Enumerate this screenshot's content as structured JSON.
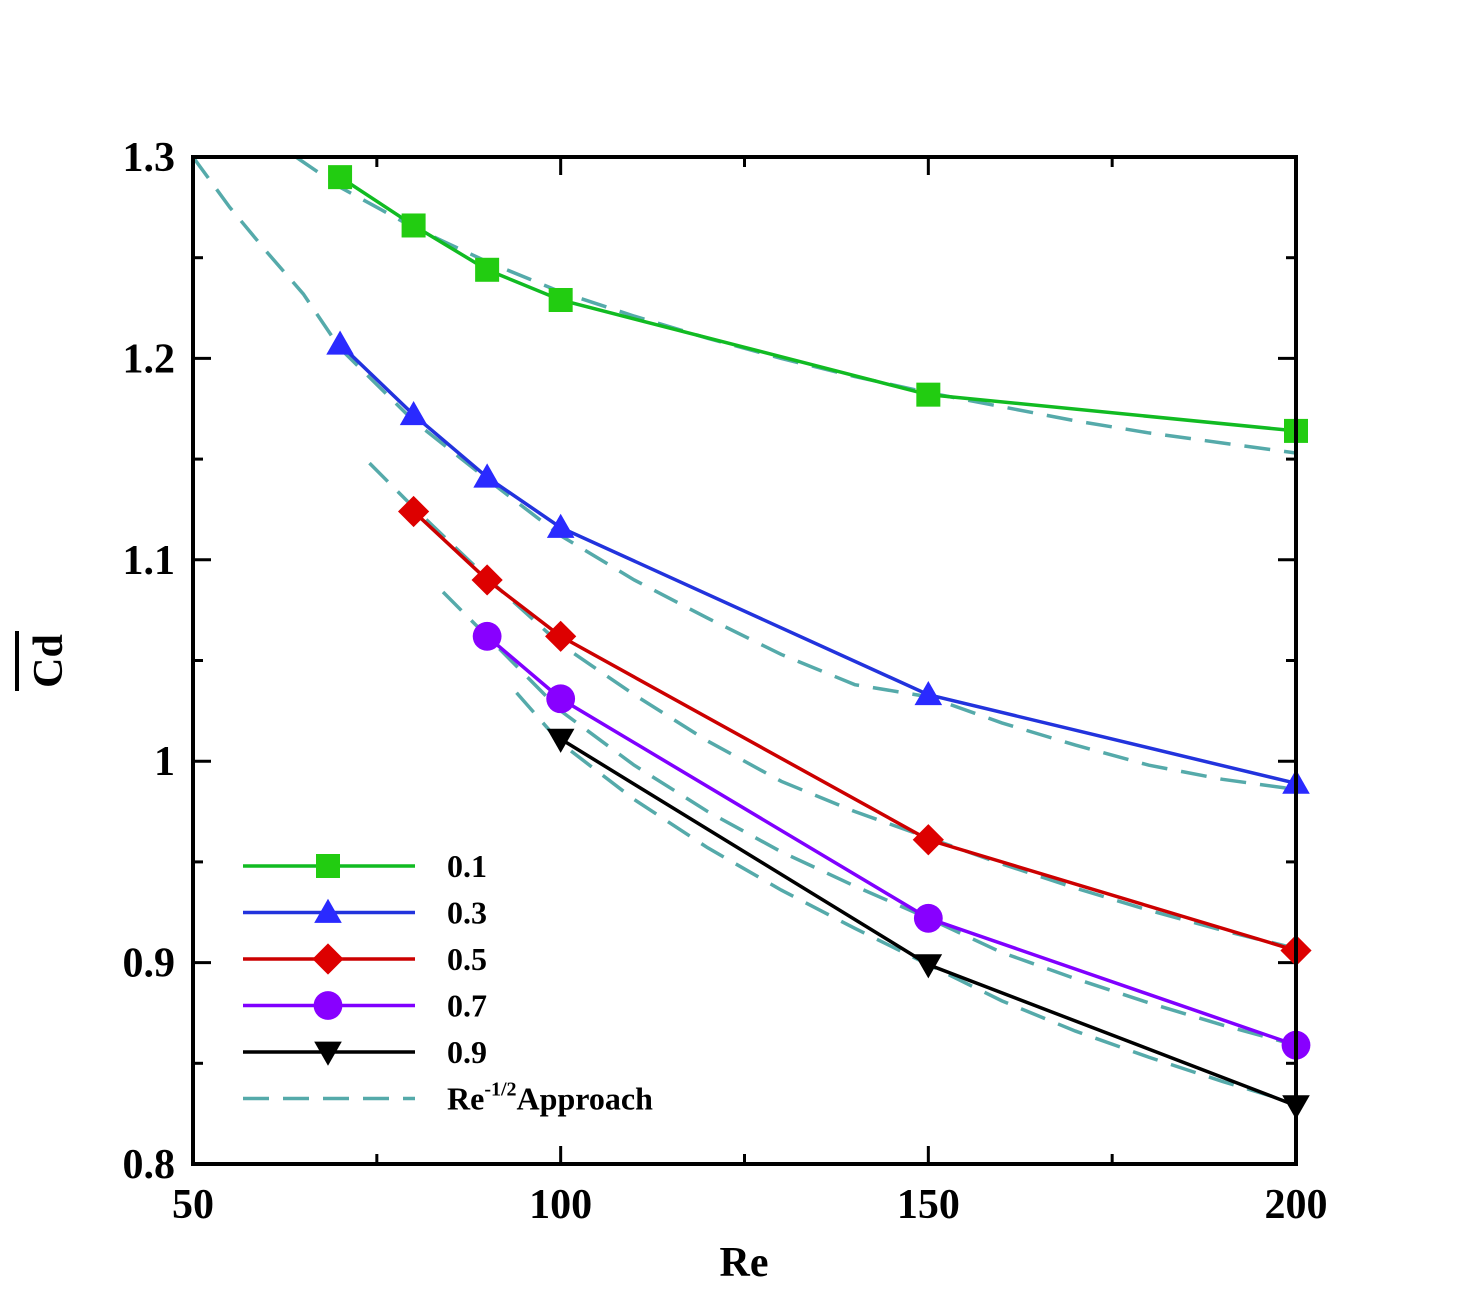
{
  "chart_data": {
    "type": "line",
    "title": "",
    "xlabel": "Re",
    "ylabel": "Cd",
    "ylabel_overline": true,
    "xlim": [
      50,
      200
    ],
    "ylim": [
      0.8,
      1.3
    ],
    "xticks": [
      50,
      100,
      150,
      200
    ],
    "xtick_labels": [
      "50",
      "100",
      "150",
      "200"
    ],
    "yticks": [
      0.8,
      0.9,
      1.0,
      1.1,
      1.2,
      1.3
    ],
    "ytick_labels": [
      "0.8",
      "0.9",
      "1",
      "1.1",
      "1.2",
      "1.3"
    ],
    "legend_position": "bottom-left",
    "series": [
      {
        "name": "0.1",
        "color": "#11bb22",
        "marker": "square",
        "marker_color": "#22cc11",
        "x": [
          70,
          80,
          90,
          100,
          150,
          200
        ],
        "y": [
          1.29,
          1.266,
          1.244,
          1.229,
          1.182,
          1.164
        ]
      },
      {
        "name": "0.3",
        "color": "#2233dd",
        "marker": "triangle-up",
        "marker_color": "#2a2aff",
        "x": [
          70,
          80,
          90,
          100,
          150,
          200
        ],
        "y": [
          1.207,
          1.172,
          1.141,
          1.116,
          1.033,
          0.989
        ]
      },
      {
        "name": "0.5",
        "color": "#cc0000",
        "marker": "diamond",
        "marker_color": "#dd0000",
        "x": [
          80,
          90,
          100,
          150,
          200
        ],
        "y": [
          1.124,
          1.09,
          1.062,
          0.961,
          0.906
        ]
      },
      {
        "name": "0.7",
        "color": "#8000ff",
        "marker": "circle",
        "marker_color": "#8800ff",
        "x": [
          90,
          100,
          150,
          200
        ],
        "y": [
          1.062,
          1.031,
          0.922,
          0.859
        ]
      },
      {
        "name": "0.9",
        "color": "#000000",
        "marker": "triangle-down",
        "marker_color": "#000000",
        "x": [
          100,
          150,
          200
        ],
        "y": [
          1.011,
          0.899,
          0.829
        ]
      }
    ],
    "fit_label_main": "Re",
    "fit_label_exp": "-1/2",
    "fit_label_rest": "Approach",
    "fit_color": "#55aaaa",
    "fit_curves": [
      {
        "for": "0.1",
        "x": [
          64,
          70,
          80,
          90,
          100,
          110,
          120,
          130,
          140,
          150,
          160,
          170,
          180,
          190,
          200
        ],
        "y": [
          1.3,
          1.285,
          1.265,
          1.248,
          1.233,
          1.221,
          1.21,
          1.2,
          1.191,
          1.183,
          1.176,
          1.169,
          1.163,
          1.158,
          1.153
        ]
      },
      {
        "for": "0.3",
        "x": [
          50,
          55,
          60,
          65,
          70,
          80,
          90,
          100,
          110,
          120,
          130,
          140,
          150,
          160,
          170,
          180,
          190,
          200
        ],
        "y": [
          1.3,
          1.275,
          1.253,
          1.232,
          1.205,
          1.169,
          1.14,
          1.112,
          1.09,
          1.071,
          1.053,
          1.038,
          1.032,
          1.019,
          1.008,
          0.998,
          0.991,
          0.986
        ]
      },
      {
        "for": "0.5",
        "x": [
          74,
          80,
          90,
          100,
          110,
          120,
          130,
          140,
          150,
          160,
          170,
          180,
          190,
          200
        ],
        "y": [
          1.148,
          1.126,
          1.091,
          1.058,
          1.033,
          1.01,
          0.99,
          0.975,
          0.962,
          0.949,
          0.937,
          0.926,
          0.916,
          0.907
        ]
      },
      {
        "for": "0.7",
        "x": [
          84,
          90,
          100,
          110,
          120,
          130,
          140,
          150,
          160,
          170,
          180,
          190,
          200
        ],
        "y": [
          1.084,
          1.062,
          1.025,
          0.998,
          0.975,
          0.955,
          0.938,
          0.922,
          0.905,
          0.892,
          0.88,
          0.869,
          0.859
        ]
      },
      {
        "for": "0.9",
        "x": [
          94,
          100,
          110,
          120,
          130,
          140,
          150,
          160,
          170,
          180,
          190,
          200
        ],
        "y": [
          1.034,
          1.009,
          0.981,
          0.957,
          0.936,
          0.917,
          0.899,
          0.881,
          0.866,
          0.853,
          0.841,
          0.83
        ]
      }
    ]
  }
}
